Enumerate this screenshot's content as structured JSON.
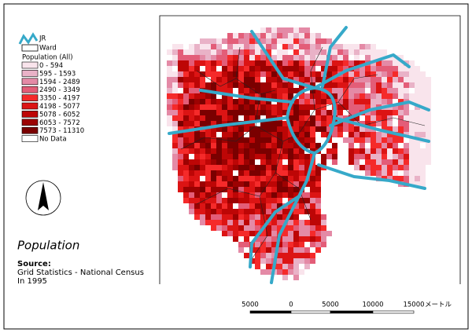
{
  "legend": {
    "jr": "JR",
    "ward": "Ward",
    "population_title": "Population (All)",
    "classes": [
      {
        "label": "0 - 594",
        "color": "#f9e4ec"
      },
      {
        "label": "595 - 1593",
        "color": "#e9b2c7"
      },
      {
        "label": "1594 - 2489",
        "color": "#e48aa6"
      },
      {
        "label": "2490 - 3349",
        "color": "#e35d78"
      },
      {
        "label": "3350 - 4197",
        "color": "#f52a2a"
      },
      {
        "label": "4198 - 5077",
        "color": "#dc1414"
      },
      {
        "label": "5078 - 6052",
        "color": "#bd0606"
      },
      {
        "label": "6053 - 7572",
        "color": "#9c0202"
      },
      {
        "label": "7573 - 11310",
        "color": "#7a0000"
      },
      {
        "label": "No Data",
        "color": "#ffffff"
      }
    ]
  },
  "title": "Population",
  "source": {
    "heading": "Source:",
    "lines": [
      "Grid Statistics - National Census",
      "In 1995"
    ]
  },
  "scale_bar": {
    "labels": [
      "5000",
      "0",
      "5000",
      "10000",
      "15000"
    ],
    "unit": "メートル"
  }
}
